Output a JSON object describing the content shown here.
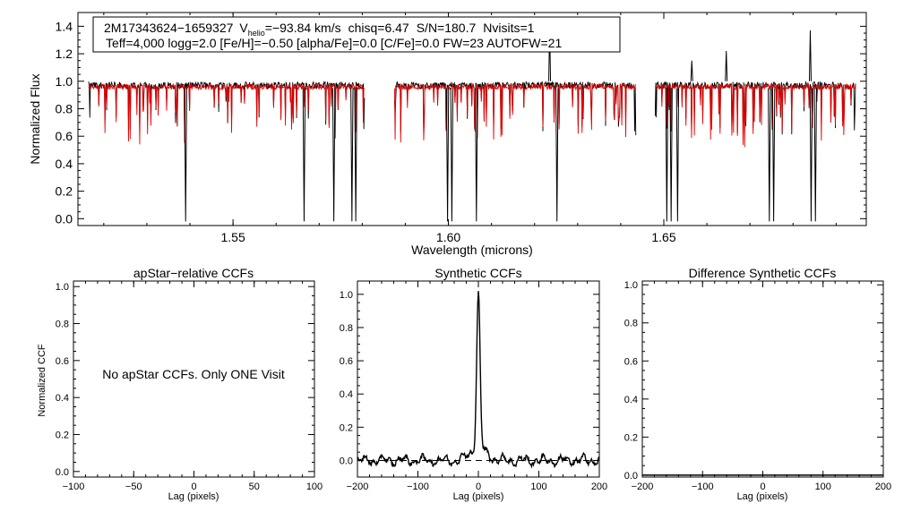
{
  "colors": {
    "observed": "#000000",
    "model": "#e00000",
    "axis": "#000000",
    "background": "#ffffff"
  },
  "chart_data": [
    {
      "id": "spectrum",
      "type": "line",
      "title": "",
      "xlabel": "Wavelength (microns)",
      "ylabel": "Normalized Flux",
      "xlim": [
        1.514,
        1.697
      ],
      "ylim": [
        -0.05,
        1.5
      ],
      "xticks": [
        1.55,
        1.6,
        1.65
      ],
      "xtick_labels": [
        "1.55",
        "1.60",
        "1.65"
      ],
      "yticks": [
        0.0,
        0.2,
        0.4,
        0.6,
        0.8,
        1.0,
        1.2,
        1.4
      ],
      "ytick_labels": [
        "0.0",
        "0.2",
        "0.4",
        "0.6",
        "0.8",
        "1.0",
        "1.2",
        "1.4"
      ],
      "segments": [
        [
          1.5165,
          1.5805
        ],
        [
          1.5875,
          1.6435
        ],
        [
          1.648,
          1.6945
        ]
      ],
      "series": [
        {
          "name": "observed spectrum",
          "color": "#000000",
          "continuum": 0.97
        },
        {
          "name": "synthetic model",
          "color": "#e00000",
          "continuum": 0.96
        }
      ],
      "deep_dropouts": [
        1.539,
        1.5665,
        1.5734,
        1.5776,
        1.5785,
        1.5998,
        1.6008,
        1.6065,
        1.6252,
        1.6507,
        1.6517,
        1.6532,
        1.6745,
        1.6755,
        1.6842,
        1.6852
      ],
      "spikes": [
        {
          "x": 1.6235,
          "y": 1.4
        },
        {
          "x": 1.684,
          "y": 1.37
        },
        {
          "x": 1.6645,
          "y": 1.22
        },
        {
          "x": 1.6565,
          "y": 1.15
        }
      ],
      "annotation": {
        "star": "2M17343624−1659327",
        "vhelio_label": "V",
        "vhelio_sub": "helio",
        "vhelio_value": "=−93.84 km/s",
        "chisq": "chisq=6.47",
        "snr": "S/N=180.7",
        "nvisits": "Nvisits=1",
        "line2": "Teff=4,000 logg=2.0 [Fe/H]=−0.50 [alpha/Fe]=0.0 [C/Fe]=0.0 FW=23 AUTOFW=21"
      }
    },
    {
      "id": "apstar",
      "type": "line",
      "title": "apStar−relative CCFs",
      "xlabel": "Lag (pixels)",
      "ylabel": "Normalized CCF",
      "xlim": [
        -100,
        100
      ],
      "ylim": [
        -0.03,
        1.03
      ],
      "xticks": [
        -100,
        -50,
        0,
        50,
        100
      ],
      "xtick_labels": [
        "−100",
        "−50",
        "0",
        "50",
        "100"
      ],
      "yticks": [
        0.0,
        0.2,
        0.4,
        0.6,
        0.8,
        1.0
      ],
      "ytick_labels": [
        "0.0",
        "0.2",
        "0.4",
        "0.6",
        "0.8",
        "1.0"
      ],
      "message": "No apStar CCFs.  Only ONE Visit",
      "series": []
    },
    {
      "id": "synthetic",
      "type": "line",
      "title": "Synthetic CCFs",
      "xlabel": "Lag (pixels)",
      "ylabel": "",
      "xlim": [
        -200,
        200
      ],
      "ylim": [
        -0.1,
        1.08
      ],
      "xticks": [
        -200,
        -100,
        0,
        100,
        200
      ],
      "xtick_labels": [
        "−200",
        "−100",
        "0",
        "100",
        "200"
      ],
      "yticks": [
        0.0,
        0.2,
        0.4,
        0.6,
        0.8,
        1.0
      ],
      "ytick_labels": [
        "0.0",
        "0.2",
        "0.4",
        "0.6",
        "0.8",
        "1.0"
      ],
      "series": [
        {
          "name": "CCF",
          "peak_x": 0,
          "peak_y": 1.0,
          "base": 0.0,
          "noise": 0.03
        },
        {
          "name": "zero level",
          "style": "dashed",
          "y": 0.0
        }
      ]
    },
    {
      "id": "difference",
      "type": "line",
      "title": "Difference Synthetic CCFs",
      "xlabel": "Lag (pixels)",
      "ylabel": "",
      "xlim": [
        -200,
        200
      ],
      "ylim": [
        -0.01,
        1.02
      ],
      "xticks": [
        -200,
        -100,
        0,
        100,
        200
      ],
      "xtick_labels": [
        "−200",
        "−100",
        "0",
        "100",
        "200"
      ],
      "yticks": [
        0.0,
        0.2,
        0.4,
        0.6,
        0.8,
        1.0
      ],
      "ytick_labels": [
        "0.0",
        "0.2",
        "0.4",
        "0.6",
        "0.8",
        "1.0"
      ],
      "series": [
        {
          "name": "difference",
          "y": 0.0
        }
      ]
    }
  ]
}
